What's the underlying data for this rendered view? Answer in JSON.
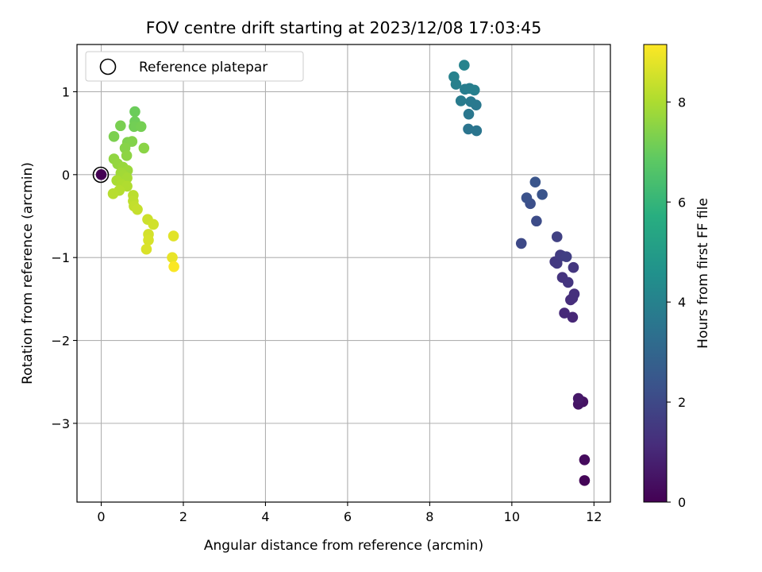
{
  "chart_data": {
    "type": "scatter",
    "title": "FOV centre drift starting at 2023/12/08 17:03:45",
    "xlabel": "Angular distance from reference (arcmin)",
    "ylabel": "Rotation from reference (arcmin)",
    "xlim": [
      -0.59,
      12.4
    ],
    "ylim": [
      -3.95,
      1.57
    ],
    "xticks": [
      0,
      2,
      4,
      6,
      8,
      10,
      12
    ],
    "xtick_labels": [
      "0",
      "2",
      "4",
      "6",
      "8",
      "10",
      "12"
    ],
    "yticks": [
      1,
      0,
      -1,
      -2,
      -3
    ],
    "ytick_labels": [
      "1",
      "0",
      "−1",
      "−2",
      "−3"
    ],
    "grid": true,
    "legend": {
      "placement": "upper-left",
      "entries": [
        "Reference platepar"
      ]
    },
    "colorbar": {
      "label": "Hours from first FF file",
      "colormap": "viridis",
      "range": [
        0,
        9.15
      ],
      "ticks": [
        0,
        2,
        4,
        6,
        8
      ],
      "tick_labels": [
        "0",
        "2",
        "4",
        "6",
        "8"
      ]
    },
    "reference_point": {
      "x": 0,
      "y": 0,
      "label": "Reference platepar"
    },
    "points": [
      {
        "x": 0.0,
        "y": 0.0,
        "h": 0.0
      },
      {
        "x": 11.77,
        "y": -3.69,
        "h": 0.1
      },
      {
        "x": 11.77,
        "y": -3.44,
        "h": 0.25
      },
      {
        "x": 11.73,
        "y": -2.74,
        "h": 0.45
      },
      {
        "x": 11.62,
        "y": -2.77,
        "h": 0.5
      },
      {
        "x": 11.62,
        "y": -2.7,
        "h": 0.6
      },
      {
        "x": 11.48,
        "y": -1.72,
        "h": 1.0
      },
      {
        "x": 11.28,
        "y": -1.67,
        "h": 1.05
      },
      {
        "x": 11.43,
        "y": -1.51,
        "h": 1.15
      },
      {
        "x": 11.48,
        "y": -1.49,
        "h": 1.2
      },
      {
        "x": 11.52,
        "y": -1.44,
        "h": 1.25
      },
      {
        "x": 11.23,
        "y": -1.24,
        "h": 1.35
      },
      {
        "x": 11.37,
        "y": -1.3,
        "h": 1.4
      },
      {
        "x": 11.5,
        "y": -1.12,
        "h": 1.45
      },
      {
        "x": 11.05,
        "y": -1.05,
        "h": 1.5
      },
      {
        "x": 11.1,
        "y": -1.07,
        "h": 1.55
      },
      {
        "x": 11.18,
        "y": -0.97,
        "h": 1.6
      },
      {
        "x": 11.22,
        "y": -0.98,
        "h": 1.65
      },
      {
        "x": 11.33,
        "y": -0.99,
        "h": 1.7
      },
      {
        "x": 11.1,
        "y": -0.75,
        "h": 1.75
      },
      {
        "x": 10.23,
        "y": -0.83,
        "h": 2.0
      },
      {
        "x": 10.6,
        "y": -0.56,
        "h": 2.1
      },
      {
        "x": 10.45,
        "y": -0.35,
        "h": 2.2
      },
      {
        "x": 10.36,
        "y": -0.28,
        "h": 2.3
      },
      {
        "x": 10.74,
        "y": -0.24,
        "h": 2.35
      },
      {
        "x": 10.57,
        "y": -0.09,
        "h": 2.4
      },
      {
        "x": 8.94,
        "y": 0.55,
        "h": 3.5
      },
      {
        "x": 9.14,
        "y": 0.53,
        "h": 3.55
      },
      {
        "x": 8.95,
        "y": 0.73,
        "h": 3.6
      },
      {
        "x": 9.13,
        "y": 0.84,
        "h": 3.65
      },
      {
        "x": 9.0,
        "y": 0.88,
        "h": 3.7
      },
      {
        "x": 8.76,
        "y": 0.89,
        "h": 3.75
      },
      {
        "x": 8.86,
        "y": 1.03,
        "h": 3.8
      },
      {
        "x": 8.97,
        "y": 1.04,
        "h": 3.85
      },
      {
        "x": 9.09,
        "y": 1.02,
        "h": 3.9
      },
      {
        "x": 8.64,
        "y": 1.09,
        "h": 3.95
      },
      {
        "x": 8.59,
        "y": 1.18,
        "h": 4.0
      },
      {
        "x": 8.84,
        "y": 1.32,
        "h": 4.05
      },
      {
        "x": 0.82,
        "y": 0.76,
        "h": 7.05
      },
      {
        "x": 0.82,
        "y": 0.64,
        "h": 7.1
      },
      {
        "x": 0.8,
        "y": 0.58,
        "h": 7.15
      },
      {
        "x": 0.97,
        "y": 0.58,
        "h": 7.2
      },
      {
        "x": 0.47,
        "y": 0.59,
        "h": 7.25
      },
      {
        "x": 0.31,
        "y": 0.46,
        "h": 7.3
      },
      {
        "x": 0.64,
        "y": 0.39,
        "h": 7.35
      },
      {
        "x": 0.75,
        "y": 0.4,
        "h": 7.4
      },
      {
        "x": 0.58,
        "y": 0.32,
        "h": 7.45
      },
      {
        "x": 1.04,
        "y": 0.32,
        "h": 7.5
      },
      {
        "x": 0.62,
        "y": 0.23,
        "h": 7.55
      },
      {
        "x": 0.31,
        "y": 0.19,
        "h": 7.6
      },
      {
        "x": 0.4,
        "y": 0.13,
        "h": 7.65
      },
      {
        "x": 0.53,
        "y": 0.09,
        "h": 7.7
      },
      {
        "x": 0.64,
        "y": 0.05,
        "h": 7.75
      },
      {
        "x": 0.48,
        "y": 0.02,
        "h": 7.8
      },
      {
        "x": 0.55,
        "y": -0.01,
        "h": 7.85
      },
      {
        "x": 0.63,
        "y": -0.04,
        "h": 7.9
      },
      {
        "x": 0.38,
        "y": -0.07,
        "h": 7.95
      },
      {
        "x": 0.5,
        "y": -0.12,
        "h": 8.0
      },
      {
        "x": 0.63,
        "y": -0.14,
        "h": 8.05
      },
      {
        "x": 0.44,
        "y": -0.19,
        "h": 8.1
      },
      {
        "x": 0.29,
        "y": -0.23,
        "h": 8.15
      },
      {
        "x": 0.78,
        "y": -0.25,
        "h": 8.2
      },
      {
        "x": 0.78,
        "y": -0.32,
        "h": 8.25
      },
      {
        "x": 0.8,
        "y": -0.38,
        "h": 8.3
      },
      {
        "x": 0.88,
        "y": -0.42,
        "h": 8.35
      },
      {
        "x": 1.13,
        "y": -0.54,
        "h": 8.45
      },
      {
        "x": 1.27,
        "y": -0.6,
        "h": 8.5
      },
      {
        "x": 1.15,
        "y": -0.72,
        "h": 8.55
      },
      {
        "x": 1.15,
        "y": -0.79,
        "h": 8.6
      },
      {
        "x": 1.1,
        "y": -0.9,
        "h": 8.65
      },
      {
        "x": 1.76,
        "y": -0.74,
        "h": 8.75
      },
      {
        "x": 1.73,
        "y": -1.0,
        "h": 8.85
      },
      {
        "x": 1.77,
        "y": -1.11,
        "h": 9.1
      }
    ]
  }
}
